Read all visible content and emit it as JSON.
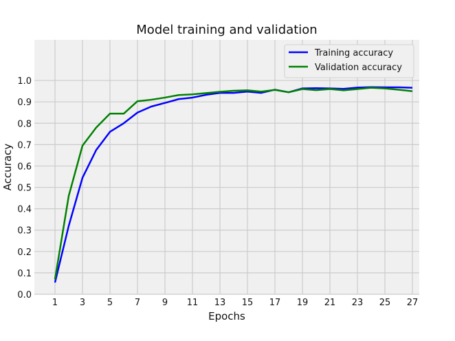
{
  "chart_data": {
    "type": "line",
    "title": "Model training and validation",
    "xlabel": "Epochs",
    "ylabel": "Accuracy",
    "xlim": [
      -0.5,
      27.5
    ],
    "ylim": [
      0.0,
      1.19
    ],
    "xticks": [
      1,
      3,
      5,
      7,
      9,
      11,
      13,
      15,
      17,
      19,
      21,
      23,
      25,
      27
    ],
    "yticks": [
      0.0,
      0.1,
      0.2,
      0.3,
      0.4,
      0.5,
      0.6,
      0.7,
      0.8,
      0.9,
      1.0
    ],
    "grid": true,
    "legend_position": "top-right",
    "x": [
      1,
      2,
      3,
      4,
      5,
      6,
      7,
      8,
      9,
      10,
      11,
      12,
      13,
      14,
      15,
      16,
      17,
      18,
      19,
      20,
      21,
      22,
      23,
      24,
      25,
      26,
      27
    ],
    "series": [
      {
        "name": "Training accuracy",
        "color": "#0000ff",
        "values": [
          0.055,
          0.32,
          0.545,
          0.675,
          0.76,
          0.8,
          0.85,
          0.878,
          0.895,
          0.913,
          0.92,
          0.933,
          0.942,
          0.942,
          0.948,
          0.942,
          0.957,
          0.945,
          0.963,
          0.964,
          0.963,
          0.961,
          0.967,
          0.969,
          0.968,
          0.968,
          0.966
        ]
      },
      {
        "name": "Validation accuracy",
        "color": "#008000",
        "values": [
          0.07,
          0.46,
          0.695,
          0.78,
          0.845,
          0.845,
          0.903,
          0.91,
          0.92,
          0.932,
          0.935,
          0.941,
          0.947,
          0.952,
          0.954,
          0.948,
          0.956,
          0.945,
          0.96,
          0.955,
          0.96,
          0.954,
          0.96,
          0.966,
          0.963,
          0.957,
          0.95
        ]
      }
    ],
    "colors": {
      "plot_background": "#f0f0f0",
      "grid": "#cbcbcb"
    }
  }
}
